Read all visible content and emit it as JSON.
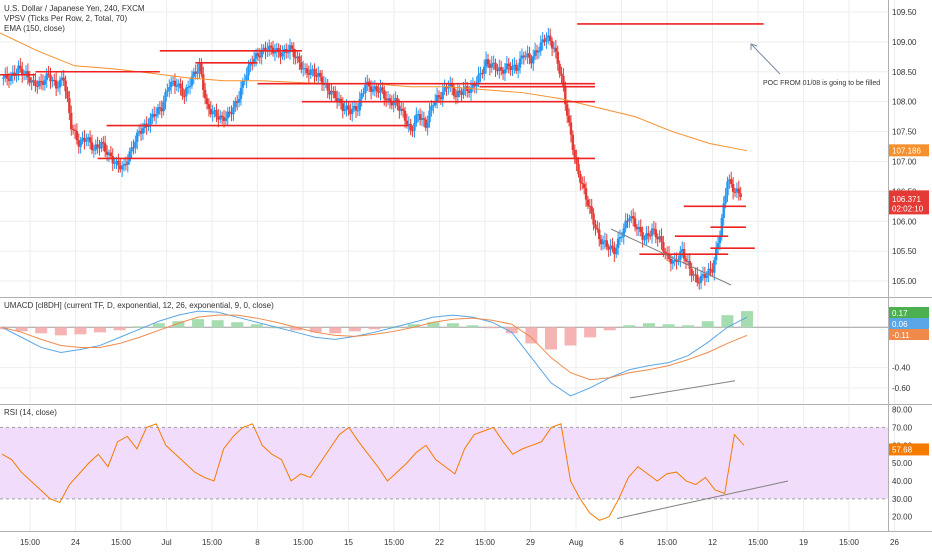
{
  "header": {
    "symbol": "U.S. Dollar / Japanese Yen, 240, FXCM",
    "vpsv": "VPSV (Ticks Per Row, 2, Total, 70)",
    "ema": "EMA (150, close)",
    "umacd": "UMACD [cl8DH] (current TF, D, exponential, 12, 26, exponential, 9, 0, close)",
    "rsi": "RSI (14, close)"
  },
  "annotation": "POC FROM 01/08 is going to be filled",
  "colors": {
    "up": "#2196f3",
    "down": "#e53935",
    "ema": "#f5902d",
    "poc": "#ee2222",
    "hist_pos": "#a5dcb0",
    "hist_neg": "#f6b3b3",
    "macd": "#5aa6e6",
    "signal": "#f08a4b",
    "rsi": "#f57c00",
    "rsi_band": "#f1dcfb",
    "trend": "#808080",
    "grid": "#eeeeee"
  },
  "chart_data": [
    {
      "type": "candlestick",
      "name": "main",
      "ylim": [
        104.75,
        109.7
      ],
      "y_ticks": [
        "109.50",
        "109.00",
        "108.50",
        "108.00",
        "107.50",
        "107.00",
        "106.50",
        "106.00",
        "105.50",
        "105.00"
      ],
      "x_labels": [
        "15:00",
        "24",
        "15:00",
        "Jul",
        "15:00",
        "8",
        "15:00",
        "15",
        "15:00",
        "22",
        "15:00",
        "29",
        "Aug",
        "6",
        "15:00",
        "12",
        "15:00",
        "19",
        "15:00",
        "26"
      ],
      "close_path": [
        108.4,
        108.4,
        108.55,
        108.45,
        108.3,
        108.3,
        108.45,
        108.25,
        108.4,
        107.6,
        107.3,
        107.4,
        107.2,
        107.3,
        107.1,
        106.95,
        106.9,
        107.2,
        107.5,
        107.6,
        107.8,
        107.9,
        108.3,
        108.3,
        108.1,
        108.4,
        108.6,
        107.9,
        107.8,
        107.7,
        107.8,
        108.0,
        108.4,
        108.7,
        108.8,
        108.9,
        108.85,
        108.8,
        108.9,
        108.7,
        108.5,
        108.5,
        108.4,
        108.2,
        108.1,
        107.9,
        107.85,
        107.9,
        108.3,
        108.2,
        108.2,
        108.0,
        108.0,
        107.8,
        107.5,
        107.8,
        107.6,
        108.0,
        108.1,
        108.3,
        108.1,
        108.2,
        108.2,
        108.4,
        108.65,
        108.6,
        108.5,
        108.6,
        108.55,
        108.8,
        108.7,
        108.9,
        109.1,
        108.9,
        108.4,
        107.6,
        106.9,
        106.5,
        106.1,
        105.7,
        105.6,
        105.5,
        105.8,
        106.1,
        105.9,
        105.7,
        105.85,
        105.7,
        105.4,
        105.3,
        105.5,
        105.2,
        105.0,
        105.1,
        105.2,
        105.8,
        106.7,
        106.5,
        106.45
      ],
      "ema_path": [
        109.15,
        108.85,
        108.6,
        108.55,
        108.48,
        108.4,
        108.35,
        108.35,
        108.32,
        108.3,
        108.3,
        108.25,
        108.25,
        108.2,
        108.15,
        108.05,
        107.9,
        107.75,
        107.5,
        107.3,
        107.18
      ],
      "last_price": "107.186",
      "current_price": "106.416",
      "countdown": "02:02:10",
      "bid_price": "106.371",
      "poc_levels": [
        108.45,
        108.5,
        108.85,
        108.65,
        108.3,
        107.6,
        108.0,
        109.3,
        108.25,
        107.05,
        105.45,
        105.75,
        106.25,
        105.9,
        105.55
      ]
    },
    {
      "type": "bar+line",
      "name": "UMACD",
      "ylim": [
        -0.75,
        0.28
      ],
      "y_ticks": [
        "-0.40",
        "-0.60"
      ],
      "value_labels": [
        "0.17",
        "0.06",
        "-0.11"
      ],
      "histogram": [
        -0.02,
        -0.04,
        -0.06,
        -0.08,
        -0.07,
        -0.05,
        -0.03,
        0.01,
        0.04,
        0.06,
        0.08,
        0.07,
        0.05,
        0.03,
        0.0,
        -0.03,
        -0.05,
        -0.06,
        -0.04,
        -0.02,
        0.01,
        0.03,
        0.05,
        0.04,
        0.02,
        -0.01,
        -0.06,
        -0.16,
        -0.22,
        -0.18,
        -0.1,
        -0.03,
        0.02,
        0.04,
        0.03,
        0.02,
        0.06,
        0.12,
        0.16
      ],
      "macd": [
        0.0,
        -0.1,
        -0.2,
        -0.25,
        -0.22,
        -0.18,
        -0.1,
        -0.02,
        0.06,
        0.12,
        0.16,
        0.15,
        0.1,
        0.05,
        0.0,
        -0.05,
        -0.1,
        -0.12,
        -0.09,
        -0.05,
        0.0,
        0.05,
        0.1,
        0.12,
        0.1,
        0.05,
        -0.05,
        -0.3,
        -0.55,
        -0.68,
        -0.6,
        -0.5,
        -0.42,
        -0.38,
        -0.35,
        -0.28,
        -0.15,
        0.0,
        0.1
      ],
      "signal": [
        0.0,
        -0.05,
        -0.12,
        -0.18,
        -0.2,
        -0.2,
        -0.16,
        -0.1,
        -0.03,
        0.04,
        0.1,
        0.12,
        0.12,
        0.09,
        0.05,
        0.0,
        -0.05,
        -0.08,
        -0.09,
        -0.07,
        -0.04,
        0.0,
        0.05,
        0.08,
        0.09,
        0.07,
        0.03,
        -0.1,
        -0.3,
        -0.45,
        -0.52,
        -0.5,
        -0.45,
        -0.42,
        -0.38,
        -0.32,
        -0.25,
        -0.16,
        -0.08
      ],
      "trendline": [
        [
          -0.67,
          0
        ],
        [
          -0.53,
          1
        ]
      ]
    },
    {
      "type": "line",
      "name": "RSI",
      "ylim": [
        12,
        82
      ],
      "y_ticks": [
        "80.00",
        "70.00",
        "60.00",
        "50.00",
        "40.00",
        "30.00",
        "20.00"
      ],
      "band": [
        30,
        70
      ],
      "value_label": "57.68",
      "values": [
        55,
        52,
        45,
        40,
        35,
        30,
        28,
        38,
        44,
        50,
        55,
        48,
        62,
        65,
        58,
        70,
        72,
        60,
        55,
        50,
        45,
        42,
        40,
        58,
        65,
        70,
        72,
        60,
        55,
        52,
        40,
        44,
        42,
        50,
        58,
        66,
        70,
        62,
        55,
        48,
        40,
        45,
        50,
        56,
        60,
        52,
        48,
        44,
        58,
        66,
        68,
        70,
        62,
        55,
        58,
        60,
        62,
        70,
        72,
        40,
        30,
        22,
        18,
        20,
        30,
        42,
        48,
        44,
        40,
        44,
        45,
        40,
        38,
        42,
        35,
        33,
        66,
        60
      ],
      "trendline": [
        [
          19,
          0
        ],
        [
          40,
          1
        ]
      ]
    }
  ]
}
